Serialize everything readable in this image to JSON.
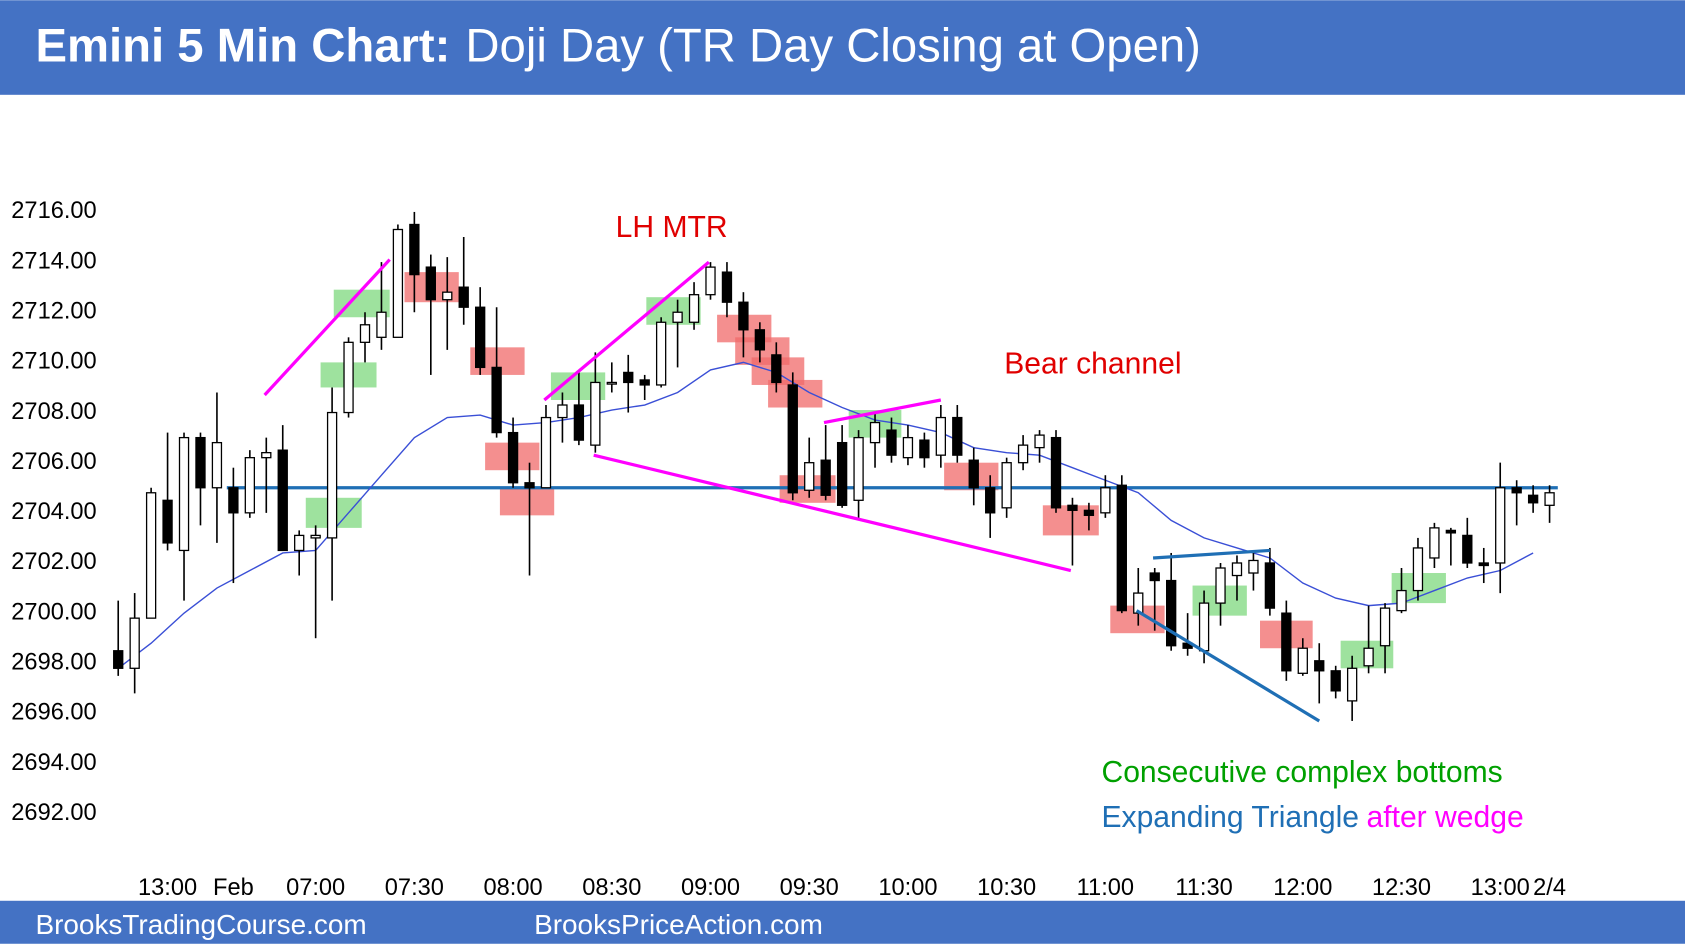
{
  "chart_data": {
    "type": "candlestick",
    "title_bold": "Emini 5 Min Chart:",
    "title": "Doji Day (TR Day Closing at Open)",
    "footer_left": "BrooksTradingCourse.com",
    "footer_right": "BrooksPriceAction.com",
    "categories": [
      null,
      null,
      null,
      "13:00",
      null,
      null,
      null,
      "Feb",
      null,
      null,
      null,
      null,
      "07:00",
      null,
      null,
      null,
      null,
      null,
      "07:30",
      null,
      null,
      null,
      null,
      null,
      "08:00",
      null,
      null,
      null,
      null,
      null,
      "08:30",
      null,
      null,
      null,
      null,
      null,
      "09:00",
      null,
      null,
      null,
      null,
      null,
      "09:30",
      null,
      null,
      null,
      null,
      null,
      "10:00",
      null,
      null,
      null,
      null,
      null,
      "10:30",
      null,
      null,
      null,
      null,
      null,
      "11:00",
      null,
      null,
      null,
      null,
      null,
      "11:30",
      null,
      null,
      null,
      null,
      null,
      "12:00",
      null,
      null,
      null,
      null,
      null,
      "12:30",
      null,
      null,
      null,
      null,
      null,
      "13:00",
      null,
      null,
      "2/4"
    ],
    "open": [
      2698.5,
      2697.8,
      2699.8,
      2704.5,
      2702.5,
      2707,
      2705,
      2705,
      2704,
      2706.2,
      2706.5,
      2702.5,
      2703,
      2703,
      2708,
      2710.8,
      2711,
      2711,
      2715.5,
      2713.8,
      2712.5,
      2713,
      2712.2,
      2709.8,
      2707.2,
      2705.2,
      2705,
      2707.8,
      2708.3,
      2706.7,
      2709.2,
      2709.6,
      2709.3,
      2709.1,
      2711.6,
      2711.6,
      2712.7,
      2713.6,
      2712.4,
      2711.3,
      2710.3,
      2709.1,
      2704.9,
      2706.1,
      2706.8,
      2704.5,
      2706.8,
      2707.3,
      2706.2,
      2706.9,
      2706.3,
      2707.8,
      2706.1,
      2705,
      2704.2,
      2706,
      2706.6,
      2707,
      2704.3,
      2704.1,
      2704,
      2705.1,
      2700,
      2701.6,
      2701.3,
      2698.8,
      2698.5,
      2700.4,
      2701.5,
      2701.6,
      2702,
      2700,
      2697.6,
      2698.1,
      2697.7,
      2696.5,
      2697.9,
      2698.7,
      2700.1,
      2700.9,
      2702.2,
      2703.3,
      2703.1,
      2702,
      2702,
      2705,
      2704.7,
      2704.3
    ],
    "high": [
      2700.5,
      2700.8,
      2705,
      2707.2,
      2707.2,
      2707.2,
      2708.8,
      2705.8,
      2706.5,
      2707,
      2707.5,
      2703.3,
      2703.5,
      2709,
      2711,
      2712,
      2714,
      2715.5,
      2716,
      2714.3,
      2714.2,
      2715,
      2713,
      2712.2,
      2707.8,
      2706,
      2708.3,
      2708.8,
      2709.6,
      2710.4,
      2710,
      2710.3,
      2709.5,
      2711.8,
      2712.5,
      2713.2,
      2714,
      2714,
      2712.8,
      2711.6,
      2710.8,
      2709.6,
      2707,
      2707.5,
      2707.5,
      2707.3,
      2708,
      2707.8,
      2707.5,
      2707.2,
      2708.3,
      2708.3,
      2706.6,
      2705.5,
      2706.2,
      2707.1,
      2707.3,
      2707.3,
      2704.6,
      2704.4,
      2705.5,
      2705.5,
      2701.8,
      2701.8,
      2702.4,
      2700,
      2700.9,
      2702,
      2702.3,
      2702.5,
      2702.6,
      2700.5,
      2699,
      2698.8,
      2697.9,
      2698.3,
      2700.3,
      2700.4,
      2701.8,
      2703,
      2703.6,
      2703.4,
      2703.8,
      2702.6,
      2706,
      2705.3,
      2705.1,
      2705.1
    ],
    "low": [
      2697.5,
      2696.8,
      2699.8,
      2702.5,
      2700.5,
      2703.5,
      2702.8,
      2701.2,
      2703.8,
      2704,
      2702.5,
      2701.5,
      2699,
      2700.5,
      2707.8,
      2710,
      2710.5,
      2711,
      2712,
      2709.5,
      2710.5,
      2711.5,
      2709.5,
      2707,
      2705,
      2701.5,
      2705,
      2706.8,
      2706.7,
      2706.4,
      2708.8,
      2708,
      2708.5,
      2709,
      2709.8,
      2711.3,
      2712.5,
      2711.8,
      2710.2,
      2710,
      2708.8,
      2704.5,
      2704.6,
      2704.5,
      2704.2,
      2703.8,
      2705.8,
      2706,
      2705.9,
      2705.8,
      2705.8,
      2706,
      2704.3,
      2703,
      2703.8,
      2705.7,
      2706,
      2704,
      2701.9,
      2703.3,
      2703.8,
      2700,
      2699.5,
      2699.3,
      2698.5,
      2698.3,
      2698,
      2699.5,
      2700.5,
      2700.9,
      2699.9,
      2697.3,
      2697.5,
      2696.4,
      2696.6,
      2695.7,
      2697.6,
      2697.6,
      2700,
      2700.5,
      2701.8,
      2701.9,
      2701.8,
      2701.2,
      2700.8,
      2703.5,
      2704,
      2703.6
    ],
    "close": [
      2697.8,
      2699.8,
      2704.8,
      2702.8,
      2707,
      2705,
      2706.8,
      2704,
      2706.2,
      2706.4,
      2702.5,
      2703.1,
      2703.1,
      2708,
      2710.8,
      2711.5,
      2712,
      2715.3,
      2713.5,
      2712.5,
      2712.8,
      2712.2,
      2709.8,
      2707.2,
      2705.2,
      2705,
      2707.8,
      2708.3,
      2706.9,
      2709.2,
      2709.2,
      2709.2,
      2709.1,
      2711.6,
      2712,
      2712.7,
      2713.8,
      2712.4,
      2711.3,
      2710.5,
      2709.2,
      2704.8,
      2706,
      2704.7,
      2704.3,
      2707,
      2707.6,
      2706.3,
      2707,
      2706.2,
      2707.8,
      2706.3,
      2705,
      2704,
      2706,
      2706.7,
      2707.1,
      2704.2,
      2704.1,
      2703.9,
      2705,
      2700.1,
      2700.8,
      2701.3,
      2698.7,
      2698.6,
      2700.4,
      2701.8,
      2702,
      2702.1,
      2700.2,
      2697.7,
      2698.6,
      2697.7,
      2696.9,
      2697.8,
      2698.6,
      2700.2,
      2700.9,
      2702.6,
      2703.4,
      2703.2,
      2702,
      2701.9,
      2705,
      2704.8,
      2704.4,
      2704.8
    ],
    "bull_color": "#ffffff",
    "bear_color": "#000000",
    "ema": {
      "color": "#3a4fd6",
      "x": [
        0,
        2,
        4,
        6,
        8,
        10,
        12,
        14,
        16,
        18,
        20,
        22,
        24,
        26,
        28,
        30,
        32,
        34,
        36,
        38,
        40,
        42,
        44,
        46,
        48,
        50,
        52,
        54,
        56,
        58,
        60,
        62,
        64,
        66,
        68,
        70,
        72,
        74,
        76,
        78,
        80,
        82,
        84,
        86
      ],
      "values": [
        2697.8,
        2698.8,
        2700,
        2701,
        2701.7,
        2702.4,
        2702.5,
        2704,
        2705.5,
        2707,
        2707.8,
        2707.9,
        2707.5,
        2707.6,
        2707.8,
        2708.1,
        2708.3,
        2708.8,
        2709.7,
        2710,
        2709.6,
        2708.8,
        2708.2,
        2707.7,
        2707.5,
        2707.2,
        2706.6,
        2706.4,
        2706.3,
        2705.8,
        2705.3,
        2704.8,
        2703.7,
        2703,
        2702.6,
        2702.2,
        2701.2,
        2700.6,
        2700.3,
        2700.4,
        2700.9,
        2701.4,
        2701.7,
        2702.4
      ]
    },
    "hlines": [
      {
        "value": 2705,
        "color": "#1f6fb5",
        "x": [
          6.6,
          87.5
        ]
      }
    ],
    "trend_lines": [
      {
        "color": "#ff00ff",
        "x": [
          8.9,
          16.5
        ],
        "y": [
          2708.7,
          2714.1
        ]
      },
      {
        "color": "#ff00ff",
        "x": [
          25.9,
          35.9
        ],
        "y": [
          2708.5,
          2714
        ]
      },
      {
        "color": "#ff00ff",
        "x": [
          28.9,
          57.9
        ],
        "y": [
          2706.3,
          2701.7
        ]
      },
      {
        "color": "#ff00ff",
        "x": [
          42.9,
          50
        ],
        "y": [
          2707.6,
          2708.5
        ]
      },
      {
        "color": "#1f6fb5",
        "x": [
          62.9,
          70
        ],
        "y": [
          2702.2,
          2702.5
        ]
      },
      {
        "color": "#1f6fb5",
        "x": [
          61.9,
          73
        ],
        "y": [
          2700.1,
          2695.7
        ]
      }
    ],
    "zones": [
      {
        "color": "#7ed87e",
        "boxes": [
          [
            11.4,
            14.8,
            2703.4,
            2704.6
          ],
          [
            12.3,
            15.7,
            2709,
            2710
          ],
          [
            13.1,
            16.5,
            2711.8,
            2712.9
          ],
          [
            26.3,
            29.6,
            2708.5,
            2709.6
          ],
          [
            32.1,
            35.4,
            2711.5,
            2712.6
          ],
          [
            44.4,
            47.6,
            2707,
            2708.1
          ],
          [
            65.3,
            68.6,
            2699.9,
            2701.1
          ],
          [
            74.3,
            77.5,
            2697.8,
            2698.9
          ],
          [
            77.4,
            80.7,
            2700.4,
            2701.6
          ]
        ]
      },
      {
        "color": "#f06a6a",
        "boxes": [
          [
            17.4,
            20.7,
            2712.4,
            2713.6
          ],
          [
            21.4,
            24.7,
            2709.5,
            2710.6
          ],
          [
            22.3,
            25.6,
            2705.7,
            2706.8
          ],
          [
            23.2,
            26.5,
            2703.9,
            2705
          ],
          [
            36.4,
            39.7,
            2710.8,
            2711.9
          ],
          [
            37.5,
            40.8,
            2709.9,
            2711
          ],
          [
            38.5,
            41.7,
            2709.1,
            2710.2
          ],
          [
            39.5,
            42.8,
            2708.2,
            2709.3
          ],
          [
            40.2,
            43.6,
            2704.4,
            2705.5
          ],
          [
            50.2,
            53.5,
            2704.9,
            2706
          ],
          [
            56.2,
            59.6,
            2703.1,
            2704.3
          ],
          [
            60.3,
            63.6,
            2699.2,
            2700.3
          ],
          [
            69.4,
            72.6,
            2698.6,
            2699.7
          ]
        ]
      }
    ],
    "annotations": [
      {
        "text": "LH MTR",
        "color": "#e00000"
      },
      {
        "text": "Bear channel",
        "color": "#e00000"
      },
      {
        "text": "Consecutive complex bottoms",
        "color": "#00a000"
      },
      {
        "text": "Expanding Triangle",
        "color": "#1f6fb5"
      },
      {
        "text": "after wedge",
        "color": "#ff00ff"
      }
    ],
    "xlim": [
      -1,
      89
    ],
    "ylim": [
      2690.5,
      2717.5
    ],
    "yticks": [
      {
        "value": 2716,
        "label": "2716.00"
      },
      {
        "value": 2714,
        "label": "2714.00"
      },
      {
        "value": 2712,
        "label": "2712.00"
      },
      {
        "value": 2710,
        "label": "2710.00"
      },
      {
        "value": 2708,
        "label": "2708.00"
      },
      {
        "value": 2706,
        "label": "2706.00"
      },
      {
        "value": 2704,
        "label": "2704.00"
      },
      {
        "value": 2702,
        "label": "2702.00"
      },
      {
        "value": 2700,
        "label": "2700.00"
      },
      {
        "value": 2698,
        "label": "2698.00"
      },
      {
        "value": 2696,
        "label": "2696.00"
      },
      {
        "value": 2694,
        "label": "2694.00"
      },
      {
        "value": 2692,
        "label": "2692.00"
      }
    ]
  }
}
